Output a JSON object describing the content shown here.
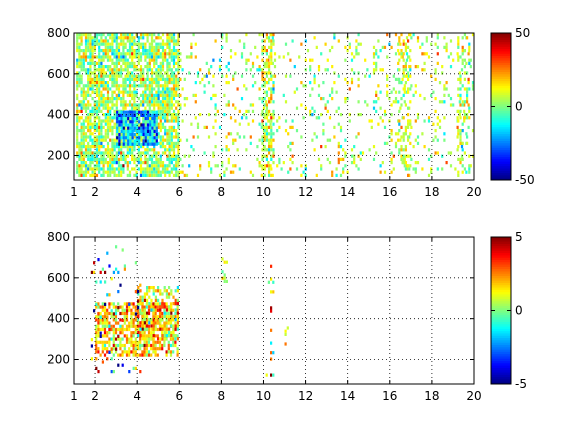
{
  "chart_data": [
    {
      "type": "heatmap",
      "title": "",
      "xlabel": "",
      "ylabel": "",
      "xlim": [
        1,
        20
      ],
      "ylim": [
        80,
        800
      ],
      "xticks": [
        1,
        2,
        4,
        6,
        8,
        10,
        12,
        14,
        16,
        18,
        20
      ],
      "yticks": [
        200,
        400,
        600,
        800
      ],
      "grid": true,
      "colormap": "jet",
      "clim": [
        -50,
        50
      ],
      "colorbar_ticks": [
        -50,
        0,
        50
      ],
      "clusters": [
        {
          "x_range": [
            1.1,
            6.0
          ],
          "y_range": [
            90,
            800
          ],
          "density": 0.75,
          "value_mean": 3,
          "value_spread": 10
        },
        {
          "x_range": [
            3.0,
            5.0
          ],
          "y_range": [
            240,
            420
          ],
          "density": 0.9,
          "value_mean": -20,
          "value_spread": 12
        },
        {
          "x_range": [
            6.0,
            20.0
          ],
          "y_range": [
            90,
            800
          ],
          "density": 0.12,
          "value_mean": 5,
          "value_spread": 10
        },
        {
          "x_range": [
            9.9,
            10.5
          ],
          "y_range": [
            90,
            800
          ],
          "density": 0.6,
          "value_mean": 8,
          "value_spread": 10
        },
        {
          "x_range": [
            16.4,
            17.0
          ],
          "y_range": [
            90,
            800
          ],
          "density": 0.35,
          "value_mean": 8,
          "value_spread": 8
        },
        {
          "x_range": [
            19.2,
            19.8
          ],
          "y_range": [
            90,
            800
          ],
          "density": 0.35,
          "value_mean": 5,
          "value_spread": 8
        }
      ]
    },
    {
      "type": "heatmap",
      "title": "",
      "xlabel": "",
      "ylabel": "",
      "xlim": [
        1,
        20
      ],
      "ylim": [
        80,
        800
      ],
      "xticks": [
        1,
        2,
        4,
        6,
        8,
        10,
        12,
        14,
        16,
        18,
        20
      ],
      "yticks": [
        200,
        400,
        600,
        800
      ],
      "grid": true,
      "colormap": "jet",
      "clim": [
        -5,
        5
      ],
      "colorbar_ticks": [
        -5,
        0,
        5
      ],
      "clusters": [
        {
          "x_range": [
            2.0,
            6.0
          ],
          "y_range": [
            220,
            480
          ],
          "density": 0.7,
          "value_mean": 1.6,
          "value_spread": 1.2
        },
        {
          "x_range": [
            4.0,
            6.0
          ],
          "y_range": [
            300,
            560
          ],
          "density": 0.5,
          "value_mean": 1.5,
          "value_spread": 1.5
        },
        {
          "x_range": [
            1.8,
            4.2
          ],
          "y_range": [
            120,
            760
          ],
          "density": 0.06,
          "value_mean": 0,
          "value_spread": 4
        },
        {
          "x_range": [
            8.0,
            8.3
          ],
          "y_range": [
            580,
            700
          ],
          "density": 0.4,
          "value_mean": 1,
          "value_spread": 1
        },
        {
          "x_range": [
            10.1,
            10.5
          ],
          "y_range": [
            100,
            680
          ],
          "density": 0.12,
          "value_mean": 1.5,
          "value_spread": 2
        },
        {
          "x_range": [
            11.0,
            11.2
          ],
          "y_range": [
            250,
            660
          ],
          "density": 0.08,
          "value_mean": 0.5,
          "value_spread": 1.5
        }
      ]
    }
  ]
}
